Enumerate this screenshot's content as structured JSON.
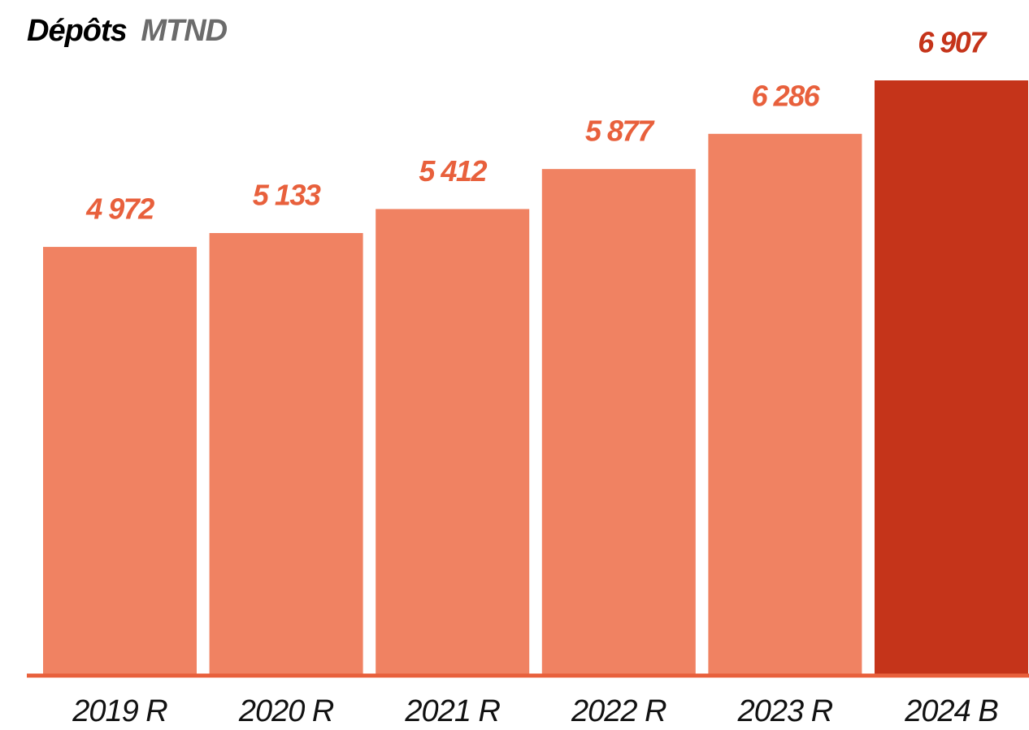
{
  "chart_data": {
    "type": "bar",
    "title": "Dépôts",
    "unit": "MTND",
    "categories": [
      "2019 R",
      "2020 R",
      "2021 R",
      "2022 R",
      "2023 R",
      "2024 B"
    ],
    "values": [
      4972,
      5133,
      5412,
      5877,
      6286,
      6907
    ],
    "value_labels": [
      "4 972",
      "5 133",
      "5 412",
      "5 877",
      "6 286",
      "6 907"
    ],
    "colors": [
      "#f08262",
      "#f08262",
      "#f08262",
      "#f08262",
      "#f08262",
      "#c5341a"
    ],
    "label_colors": [
      "#e8603c",
      "#e8603c",
      "#e8603c",
      "#e8603c",
      "#e8603c",
      "#c5341a"
    ],
    "axis_color": "#e8603c"
  }
}
